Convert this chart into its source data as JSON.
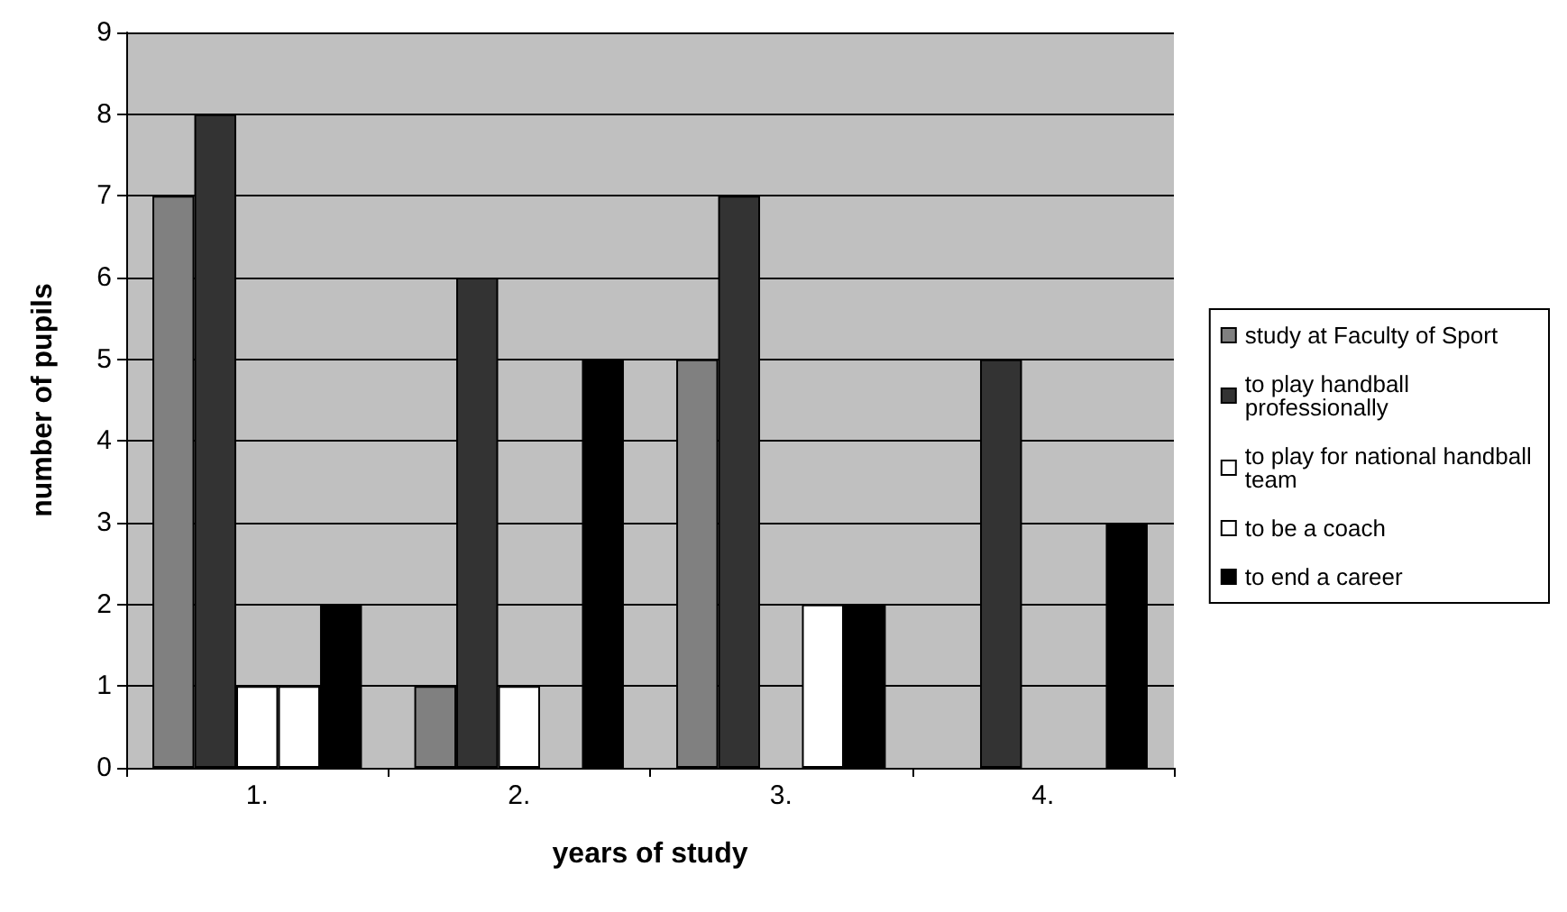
{
  "chart_data": {
    "type": "bar",
    "xlabel": "years of study",
    "ylabel": "number of pupils",
    "categories": [
      "1.",
      "2.",
      "3.",
      "4."
    ],
    "series": [
      {
        "name": "study at Faculty of Sport",
        "color": "#808080",
        "values": [
          7,
          1,
          5,
          0
        ]
      },
      {
        "name": "to play handball professionally",
        "color": "#333333",
        "values": [
          8,
          6,
          7,
          5
        ]
      },
      {
        "name": "to play for national handball team",
        "color": "#ffffff",
        "values": [
          1,
          1,
          0,
          0
        ]
      },
      {
        "name": "to be a coach",
        "color": "#ffffff",
        "values": [
          1,
          0,
          2,
          0
        ]
      },
      {
        "name": "to end a career",
        "color": "#000000",
        "values": [
          2,
          5,
          2,
          3
        ]
      }
    ],
    "ylim": [
      0,
      9
    ],
    "yticks": [
      0,
      1,
      2,
      3,
      4,
      5,
      6,
      7,
      8,
      9
    ],
    "grid": "y",
    "legend": "right"
  }
}
